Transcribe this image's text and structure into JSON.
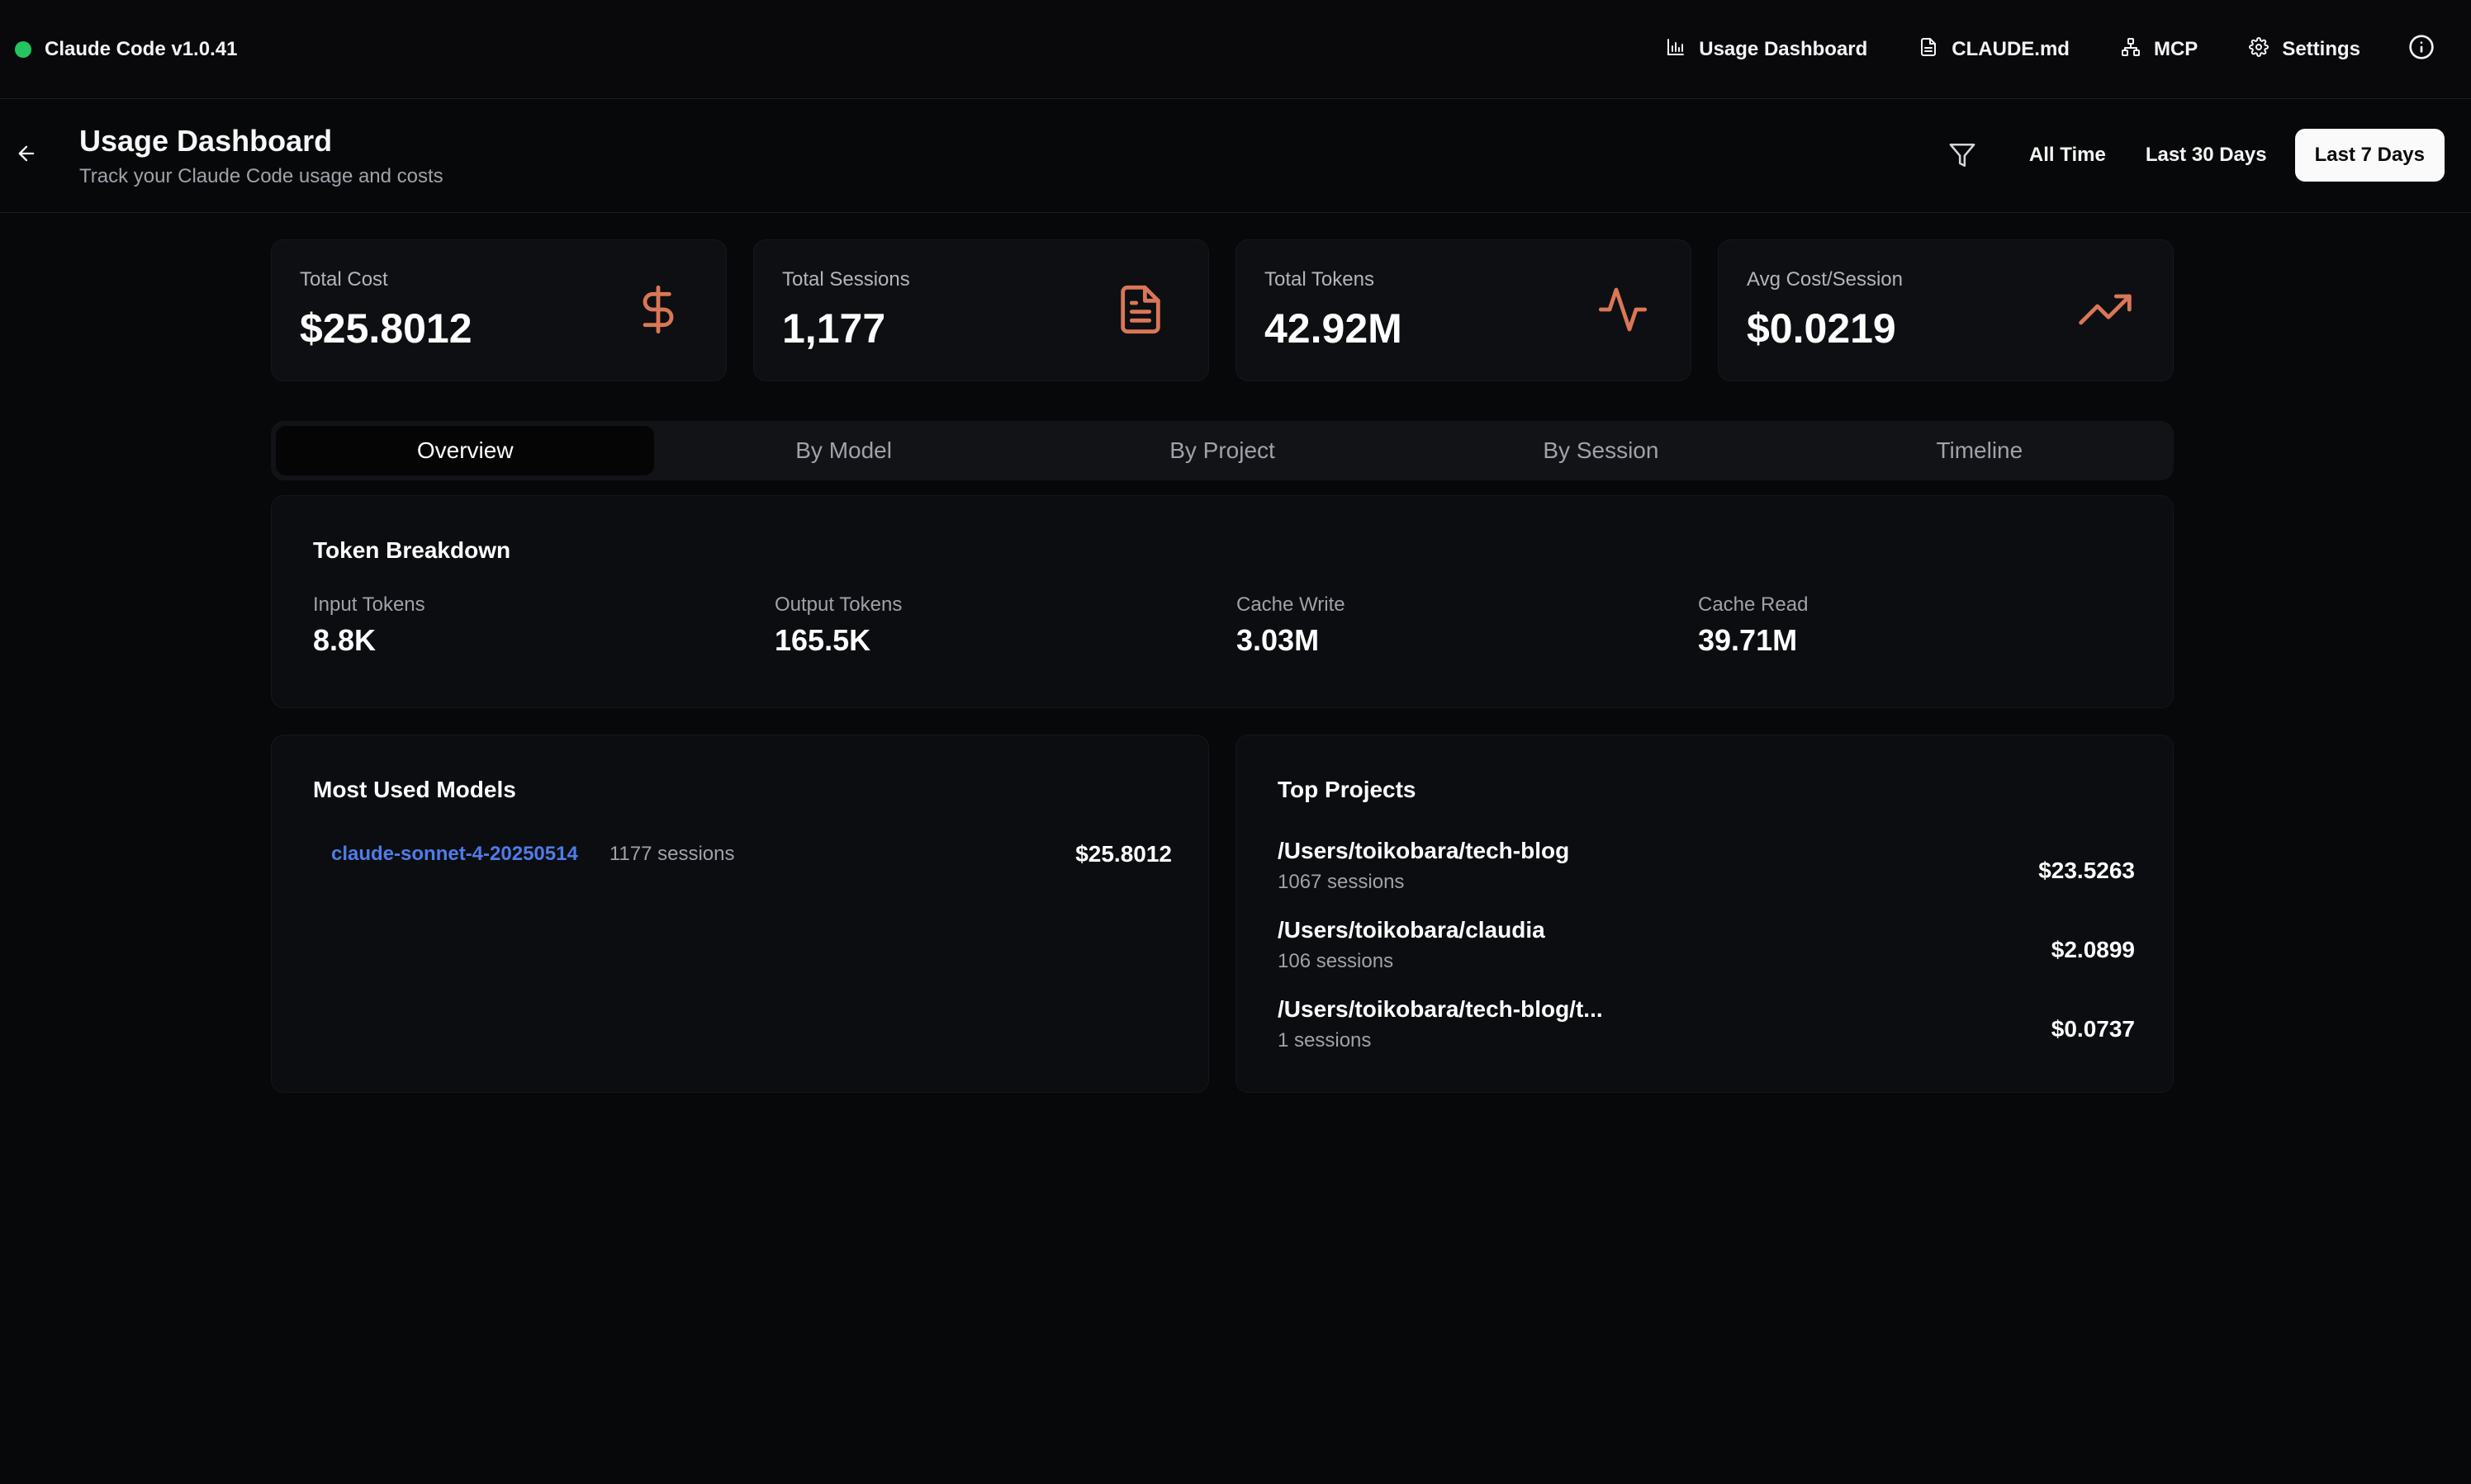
{
  "app": {
    "title": "Claude Code v1.0.41",
    "status_color": "#22c55e"
  },
  "topnav": {
    "usage": {
      "label": "Usage Dashboard",
      "icon": "bar-chart-icon"
    },
    "claude_md": {
      "label": "CLAUDE.md",
      "icon": "file-text-icon"
    },
    "mcp": {
      "label": "MCP",
      "icon": "network-icon"
    },
    "settings": {
      "label": "Settings",
      "icon": "gear-icon"
    },
    "info": {
      "icon": "info-icon"
    }
  },
  "header": {
    "title": "Usage Dashboard",
    "subtitle": "Track your Claude Code usage and costs",
    "ranges": [
      "All Time",
      "Last 30 Days",
      "Last 7 Days"
    ],
    "active_range": "Last 7 Days"
  },
  "stats": [
    {
      "label": "Total Cost",
      "value": "$25.8012",
      "icon": "dollar-icon"
    },
    {
      "label": "Total Sessions",
      "value": "1,177",
      "icon": "file-text-icon"
    },
    {
      "label": "Total Tokens",
      "value": "42.92M",
      "icon": "activity-icon"
    },
    {
      "label": "Avg Cost/Session",
      "value": "$0.0219",
      "icon": "trending-up-icon"
    }
  ],
  "accent_color": "#d97757",
  "tabs": [
    "Overview",
    "By Model",
    "By Project",
    "By Session",
    "Timeline"
  ],
  "active_tab": "Overview",
  "token_breakdown": {
    "title": "Token Breakdown",
    "items": [
      {
        "label": "Input Tokens",
        "value": "8.8K"
      },
      {
        "label": "Output Tokens",
        "value": "165.5K"
      },
      {
        "label": "Cache Write",
        "value": "3.03M"
      },
      {
        "label": "Cache Read",
        "value": "39.71M"
      }
    ]
  },
  "models": {
    "title": "Most Used Models",
    "items": [
      {
        "name": "claude-sonnet-4-20250514",
        "sessions": "1177 sessions",
        "cost": "$25.8012"
      }
    ]
  },
  "projects": {
    "title": "Top Projects",
    "items": [
      {
        "path": "/Users/toikobara/tech-blog",
        "sessions": "1067 sessions",
        "cost": "$23.5263"
      },
      {
        "path": "/Users/toikobara/claudia",
        "sessions": "106 sessions",
        "cost": "$2.0899"
      },
      {
        "path": "/Users/toikobara/tech-blog/t...",
        "sessions": "1 sessions",
        "cost": "$0.0737"
      }
    ]
  }
}
